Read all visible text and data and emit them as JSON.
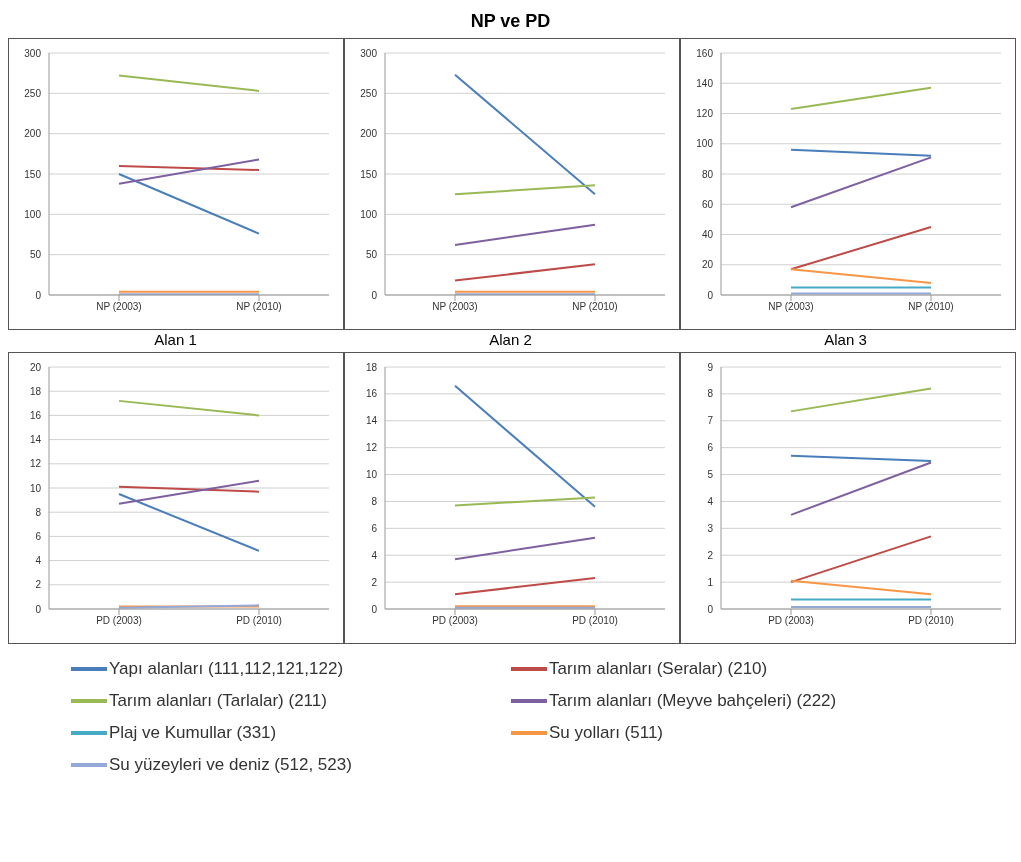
{
  "chart_data": [
    {
      "type": "line",
      "xlabel": "Alan 1",
      "categories": [
        "NP (2003)",
        "NP (2010)"
      ],
      "ylim": [
        0,
        300
      ],
      "yticks": [
        0,
        50,
        100,
        150,
        200,
        250,
        300
      ],
      "grid": "y",
      "marker": "none",
      "series": [
        {
          "color": "#4a7ebb",
          "values": [
            150,
            76
          ]
        },
        {
          "color": "#be4b48",
          "values": [
            160,
            155
          ]
        },
        {
          "color": "#98b954",
          "values": [
            272,
            253
          ]
        },
        {
          "color": "#7d60a0",
          "values": [
            138,
            168
          ]
        },
        {
          "color": "#46aac5",
          "values": [
            null,
            null
          ]
        },
        {
          "color": "#f79646",
          "values": [
            4,
            4
          ]
        },
        {
          "color": "#94a9d8",
          "values": [
            1,
            1
          ]
        }
      ]
    },
    {
      "type": "line",
      "title": "NP ve PD",
      "xlabel": "Alan 2",
      "categories": [
        "NP (2003)",
        "NP (2010)"
      ],
      "ylim": [
        0,
        300
      ],
      "yticks": [
        0,
        50,
        100,
        150,
        200,
        250,
        300
      ],
      "grid": "y",
      "marker": "none",
      "series": [
        {
          "color": "#4a7ebb",
          "values": [
            273,
            125
          ]
        },
        {
          "color": "#be4b48",
          "values": [
            18,
            38
          ]
        },
        {
          "color": "#98b954",
          "values": [
            125,
            136
          ]
        },
        {
          "color": "#7d60a0",
          "values": [
            62,
            87
          ]
        },
        {
          "color": "#46aac5",
          "values": [
            null,
            null
          ]
        },
        {
          "color": "#f79646",
          "values": [
            4,
            4
          ]
        },
        {
          "color": "#94a9d8",
          "values": [
            1,
            1
          ]
        }
      ]
    },
    {
      "type": "line",
      "xlabel": "Alan 3",
      "categories": [
        "NP (2003)",
        "NP (2010)"
      ],
      "ylim": [
        0,
        160
      ],
      "yticks": [
        0,
        20,
        40,
        60,
        80,
        100,
        120,
        140,
        160
      ],
      "grid": "y",
      "marker": "none",
      "series": [
        {
          "color": "#4a7ebb",
          "values": [
            96,
            92
          ]
        },
        {
          "color": "#be4b48",
          "values": [
            17,
            45
          ]
        },
        {
          "color": "#98b954",
          "values": [
            123,
            137
          ]
        },
        {
          "color": "#7d60a0",
          "values": [
            58,
            91
          ]
        },
        {
          "color": "#46aac5",
          "values": [
            5,
            5
          ]
        },
        {
          "color": "#f79646",
          "values": [
            17,
            8
          ]
        },
        {
          "color": "#94a9d8",
          "values": [
            1,
            1
          ]
        }
      ]
    },
    {
      "type": "line",
      "categories": [
        "PD (2003)",
        "PD (2010)"
      ],
      "ylim": [
        0,
        20
      ],
      "yticks": [
        0,
        2,
        4,
        6,
        8,
        10,
        12,
        14,
        16,
        18,
        20
      ],
      "grid": "y",
      "marker": "none",
      "series": [
        {
          "color": "#4a7ebb",
          "values": [
            9.5,
            4.8
          ]
        },
        {
          "color": "#be4b48",
          "values": [
            10.1,
            9.7
          ]
        },
        {
          "color": "#98b954",
          "values": [
            17.2,
            16.0
          ]
        },
        {
          "color": "#7d60a0",
          "values": [
            8.7,
            10.6
          ]
        },
        {
          "color": "#46aac5",
          "values": [
            null,
            null
          ]
        },
        {
          "color": "#f79646",
          "values": [
            0.2,
            0.2
          ]
        },
        {
          "color": "#94a9d8",
          "values": [
            0.1,
            0.3
          ]
        }
      ]
    },
    {
      "type": "line",
      "categories": [
        "PD (2003)",
        "PD (2010)"
      ],
      "ylim": [
        0,
        18
      ],
      "yticks": [
        0,
        2,
        4,
        6,
        8,
        10,
        12,
        14,
        16,
        18
      ],
      "grid": "y",
      "marker": "none",
      "series": [
        {
          "color": "#4a7ebb",
          "values": [
            16.6,
            7.6
          ]
        },
        {
          "color": "#be4b48",
          "values": [
            1.1,
            2.3
          ]
        },
        {
          "color": "#98b954",
          "values": [
            7.7,
            8.3
          ]
        },
        {
          "color": "#7d60a0",
          "values": [
            3.7,
            5.3
          ]
        },
        {
          "color": "#46aac5",
          "values": [
            null,
            null
          ]
        },
        {
          "color": "#f79646",
          "values": [
            0.2,
            0.2
          ]
        },
        {
          "color": "#94a9d8",
          "values": [
            0.1,
            0.1
          ]
        }
      ]
    },
    {
      "type": "line",
      "categories": [
        "PD (2003)",
        "PD (2010)"
      ],
      "ylim": [
        0,
        9
      ],
      "yticks": [
        0,
        1,
        2,
        3,
        4,
        5,
        6,
        7,
        8,
        9
      ],
      "grid": "y",
      "marker": "none",
      "legend": "bottom",
      "series": [
        {
          "name": "Yapı alanları (111,112,121,122)",
          "color": "#4a7ebb",
          "values": [
            5.7,
            5.5
          ]
        },
        {
          "name": "Tarım alanları (Seralar) (210)",
          "color": "#be4b48",
          "values": [
            1.0,
            2.7
          ]
        },
        {
          "name": "Tarım alanları (Tarlalar) (211)",
          "color": "#98b954",
          "values": [
            7.35,
            8.2
          ]
        },
        {
          "name": "Tarım alanları (Meyve bahçeleri) (222)",
          "color": "#7d60a0",
          "values": [
            3.5,
            5.45
          ]
        },
        {
          "name": "Plaj ve Kumullar (331)",
          "color": "#46aac5",
          "values": [
            0.35,
            0.35
          ]
        },
        {
          "name": "Su yolları (511)",
          "color": "#f79646",
          "values": [
            1.05,
            0.55
          ]
        },
        {
          "name": "Su yüzeyleri ve deniz (512, 523)",
          "color": "#94a9d8",
          "values": [
            0.07,
            0.07
          ]
        }
      ]
    }
  ]
}
